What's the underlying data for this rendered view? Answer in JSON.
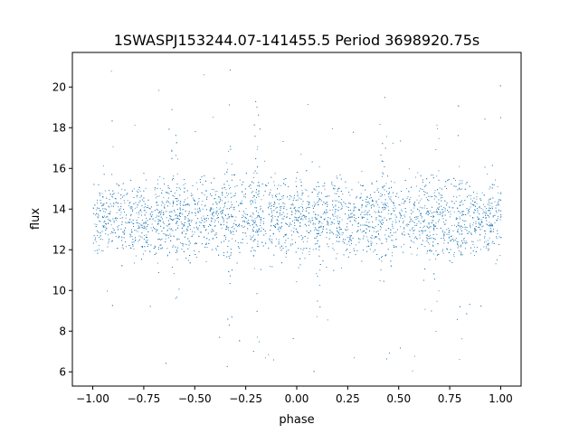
{
  "chart_data": {
    "type": "scatter",
    "title": "1SWASPJ153244.07-141455.5 Period 3698920.75s",
    "xlabel": "phase",
    "ylabel": "flux",
    "xlim": [
      -1.1,
      1.1
    ],
    "ylim": [
      5.3,
      21.7
    ],
    "xticks": [
      -1.0,
      -0.75,
      -0.5,
      -0.25,
      0.0,
      0.25,
      0.5,
      0.75,
      1.0
    ],
    "xtick_labels": [
      "−1.00",
      "−0.75",
      "−0.50",
      "−0.25",
      "0.00",
      "0.25",
      "0.50",
      "0.75",
      "1.00"
    ],
    "yticks": [
      6,
      8,
      10,
      12,
      14,
      16,
      18,
      20
    ],
    "ytick_labels": [
      "6",
      "8",
      "10",
      "12",
      "14",
      "16",
      "18",
      "20"
    ],
    "grid": false,
    "point_color": "#1f77b4",
    "x_range": [
      -1.0,
      1.0
    ],
    "core_flux_range": [
      11.5,
      16.5
    ],
    "median_flux": 13.6,
    "min_flux": 6.0,
    "max_flux": 21.1,
    "notes": "Phase-folded light curve repeated twice (x in [-1,0] mirrors x in [0,1]); dense band of points roughly 11.5-16.5 with scattered outliers down to ~6 and up to ~21, vertical streak clusters near phases -0.60, -0.33, -0.20, 0.10, 0.42, 0.68, 0.80."
  }
}
